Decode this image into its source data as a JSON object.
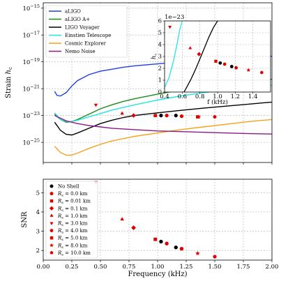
{
  "chart_data": [
    {
      "type": "line",
      "xlabel": "",
      "ylabel": "Strain $h_c$",
      "ylabel_main": "Strain ",
      "ylabel_sub": "c",
      "xlim": [
        0.0,
        2.0
      ],
      "ylim_log10": [
        -26.5,
        -14.6
      ],
      "yscale": "log",
      "grid": true,
      "legend_loc": "upper-left",
      "yticks": [
        {
          "exp": -15,
          "label": "10",
          "sup": "−15"
        },
        {
          "exp": -17,
          "label": "10",
          "sup": "−17"
        },
        {
          "exp": -19,
          "label": "10",
          "sup": "−19"
        },
        {
          "exp": -21,
          "label": "10",
          "sup": "−21"
        },
        {
          "exp": -23,
          "label": "10",
          "sup": "−23"
        },
        {
          "exp": -25,
          "label": "10",
          "sup": "−25"
        }
      ],
      "series": [
        {
          "name": "aLIGO",
          "color": "#1f3fe0",
          "kind": "curve",
          "x": [
            0.1,
            0.12,
            0.15,
            0.2,
            0.25,
            0.3,
            0.4,
            0.5,
            0.6,
            0.7,
            0.8,
            1.0,
            1.2,
            1.4,
            1.6,
            1.8,
            2.0
          ],
          "log10y": [
            -21.2,
            -21.5,
            -21.55,
            -21.3,
            -20.8,
            -20.4,
            -19.95,
            -19.7,
            -19.55,
            -19.4,
            -19.3,
            -19.15,
            -19.0,
            -18.88,
            -18.78,
            -18.68,
            -18.58
          ]
        },
        {
          "name": "aLIGO A+",
          "color": "#1a8a1a",
          "kind": "curve",
          "x": [
            0.1,
            0.15,
            0.2,
            0.25,
            0.3,
            0.4,
            0.5,
            0.6,
            0.7,
            0.8,
            1.0,
            1.2,
            1.4,
            1.6,
            1.8,
            2.0
          ],
          "log10y": [
            -22.9,
            -23.3,
            -23.5,
            -23.45,
            -23.3,
            -22.9,
            -22.5,
            -22.2,
            -21.95,
            -21.75,
            -21.4,
            -21.1,
            -20.85,
            -20.65,
            -20.45,
            -20.3
          ]
        },
        {
          "name": "LIGO Voyager",
          "color": "#000000",
          "kind": "curve",
          "x": [
            0.1,
            0.15,
            0.2,
            0.25,
            0.3,
            0.4,
            0.5,
            0.6,
            0.7,
            0.8,
            0.9,
            1.0,
            1.2,
            1.4,
            1.6,
            1.8,
            2.0
          ],
          "log10y": [
            -23.5,
            -24.1,
            -24.4,
            -24.45,
            -24.3,
            -23.95,
            -23.6,
            -23.35,
            -23.15,
            -23.0,
            -22.9,
            -22.8,
            -22.62,
            -22.45,
            -22.3,
            -22.15,
            -22.0
          ]
        },
        {
          "name": "Einstien Telescope",
          "color": "#22e5e5",
          "kind": "curve",
          "x": [
            0.1,
            0.15,
            0.2,
            0.25,
            0.3,
            0.4,
            0.5,
            0.6,
            0.7,
            0.8,
            1.0,
            1.2,
            1.4,
            1.6,
            1.8,
            2.0
          ],
          "log10y": [
            -22.8,
            -23.3,
            -23.45,
            -23.45,
            -23.35,
            -23.1,
            -22.85,
            -22.6,
            -22.4,
            -22.2,
            -21.85,
            -21.55,
            -21.3,
            -21.1,
            -20.9,
            -20.75
          ]
        },
        {
          "name": "Cosmic Explorer",
          "color": "#f5a21b",
          "kind": "curve",
          "x": [
            0.1,
            0.15,
            0.2,
            0.25,
            0.3,
            0.4,
            0.5,
            0.6,
            0.8,
            1.0,
            1.2,
            1.4,
            1.6,
            1.8,
            2.0
          ],
          "log10y": [
            -25.3,
            -25.75,
            -25.95,
            -25.95,
            -25.8,
            -25.45,
            -25.15,
            -24.9,
            -24.55,
            -24.3,
            -24.05,
            -23.85,
            -23.65,
            -23.45,
            -23.3
          ]
        },
        {
          "name": "Nemo Noise",
          "color": "#8a1a8a",
          "kind": "curve",
          "x": [
            0.1,
            0.2,
            0.3,
            0.4,
            0.5,
            0.6,
            0.8,
            1.0,
            1.2,
            1.4,
            1.6,
            1.8,
            2.0
          ],
          "log10y": [
            -23.0,
            -23.4,
            -23.6,
            -23.75,
            -23.85,
            -23.95,
            -24.05,
            -24.15,
            -24.2,
            -24.25,
            -24.3,
            -24.35,
            -24.38
          ]
        }
      ],
      "points": [
        {
          "marker": "circle",
          "color": "#000000",
          "x": 1.03,
          "log10y": -23.0
        },
        {
          "marker": "circle",
          "color": "#e00000",
          "x": 1.08,
          "log10y": -23.0
        },
        {
          "marker": "square",
          "color": "#e00000",
          "x": 0.98,
          "log10y": -23.0
        },
        {
          "marker": "diamond",
          "color": "#e00000",
          "x": 0.79,
          "log10y": -23.0
        },
        {
          "marker": "triangle-up",
          "color": "#e00000",
          "x": 0.69,
          "log10y": -22.85
        },
        {
          "marker": "triangle-down",
          "color": "#e00000",
          "x": 0.46,
          "log10y": -22.2
        },
        {
          "marker": "square",
          "color": "#e00000",
          "x": 1.35,
          "log10y": -23.1
        },
        {
          "marker": "star",
          "color": "#e00000",
          "x": 1.36,
          "log10y": -23.1
        },
        {
          "marker": "hexagon",
          "color": "#e00000",
          "x": 1.5,
          "log10y": -23.1
        },
        {
          "marker": "circle",
          "color": "#000000",
          "x": 1.16,
          "log10y": -23.0
        },
        {
          "marker": "circle",
          "color": "#e00000",
          "x": 1.21,
          "log10y": -23.05
        }
      ]
    },
    {
      "type": "line",
      "inset": true,
      "ylabel": "$h_c$",
      "ylabel_main": "h",
      "ylabel_sub": "c",
      "xlabel": "f (kHz)",
      "offset_text": "1e−23",
      "xlim": [
        0.4,
        1.6
      ],
      "ylim": [
        0,
        6
      ],
      "grid": true,
      "xticks": [
        "0.4",
        "0.6",
        "0.8",
        "1.0",
        "1.2",
        "1.4"
      ],
      "yticks": [
        "0",
        "1",
        "2",
        "3",
        "4",
        "5",
        "6"
      ],
      "series": [
        {
          "name": "Einstien Telescope",
          "color": "#22e5e5",
          "x": [
            0.4,
            0.45,
            0.5,
            0.54,
            0.57,
            0.6
          ],
          "y": [
            0.4,
            1.2,
            2.6,
            4.0,
            5.2,
            6.0
          ]
        },
        {
          "name": "LIGO Voyager",
          "color": "#000000",
          "x": [
            0.62,
            0.65,
            0.7,
            0.75,
            0.8,
            0.85,
            0.9,
            0.95,
            1.0
          ],
          "y": [
            0.0,
            0.4,
            1.1,
            1.9,
            2.8,
            3.7,
            4.6,
            5.4,
            6.0
          ]
        }
      ],
      "points": [
        {
          "marker": "triangle-down",
          "color": "#e00000",
          "x": 0.46,
          "y": 5.5
        },
        {
          "marker": "triangle-up",
          "color": "#e00000",
          "x": 0.69,
          "y": 3.7
        },
        {
          "marker": "diamond",
          "color": "#e00000",
          "x": 0.79,
          "y": 3.2
        },
        {
          "marker": "square",
          "color": "#e00000",
          "x": 0.98,
          "y": 2.6
        },
        {
          "marker": "circle",
          "color": "#000000",
          "x": 1.03,
          "y": 2.45
        },
        {
          "marker": "circle",
          "color": "#e00000",
          "x": 1.08,
          "y": 2.35
        },
        {
          "marker": "circle",
          "color": "#000000",
          "x": 1.16,
          "y": 2.15
        },
        {
          "marker": "circle",
          "color": "#e00000",
          "x": 1.21,
          "y": 2.05
        },
        {
          "marker": "star",
          "color": "#e00000",
          "x": 1.35,
          "y": 1.85
        },
        {
          "marker": "hexagon",
          "color": "#e00000",
          "x": 1.5,
          "y": 1.65
        }
      ]
    },
    {
      "type": "scatter",
      "xlabel": "Frequency (kHz)",
      "ylabel": "SNR",
      "xlim": [
        0.0,
        2.0
      ],
      "ylim": [
        1.5,
        5.7
      ],
      "grid": true,
      "legend_loc": "upper-left",
      "xticks": [
        "0.00",
        "0.25",
        "0.50",
        "0.75",
        "1.00",
        "1.25",
        "1.50",
        "1.75",
        "2.00"
      ],
      "yticks": [
        "2",
        "3",
        "4",
        "5"
      ],
      "legend": [
        {
          "label": "No Shell",
          "marker": "circle",
          "color": "#000000"
        },
        {
          "label": "0.0 km",
          "marker": "circle",
          "color": "#e00000"
        },
        {
          "label": "0.01 km",
          "marker": "square",
          "color": "#e00000"
        },
        {
          "label": "0.1 km",
          "marker": "diamond",
          "color": "#e00000"
        },
        {
          "label": "1.0 km",
          "marker": "triangle-up",
          "color": "#e00000"
        },
        {
          "label": "3.0 km",
          "marker": "triangle-down",
          "color": "#e00000"
        },
        {
          "label": "4.0 km",
          "marker": "hexagon",
          "color": "#e00000"
        },
        {
          "label": "5.0 km",
          "marker": "square",
          "color": "#e00000"
        },
        {
          "label": "8.0 km",
          "marker": "star",
          "color": "#e00000"
        },
        {
          "label": "10.0 km",
          "marker": "pentagon",
          "color": "#e00000"
        }
      ],
      "legend_prefix": "R",
      "legend_prefix_sub": "s",
      "points": [
        {
          "marker": "triangle-down",
          "color": "#e00000",
          "x": 0.46,
          "y": 5.55
        },
        {
          "marker": "triangle-up",
          "color": "#e00000",
          "x": 0.69,
          "y": 3.62
        },
        {
          "marker": "diamond",
          "color": "#e00000",
          "x": 0.79,
          "y": 3.18
        },
        {
          "marker": "square",
          "color": "#e00000",
          "x": 0.98,
          "y": 2.58
        },
        {
          "marker": "circle",
          "color": "#000000",
          "x": 1.03,
          "y": 2.46
        },
        {
          "marker": "circle",
          "color": "#e00000",
          "x": 1.08,
          "y": 2.36
        },
        {
          "marker": "circle",
          "color": "#000000",
          "x": 1.16,
          "y": 2.16
        },
        {
          "marker": "circle",
          "color": "#e00000",
          "x": 1.21,
          "y": 2.09
        },
        {
          "marker": "star",
          "color": "#e00000",
          "x": 1.35,
          "y": 1.85
        },
        {
          "marker": "hexagon",
          "color": "#e00000",
          "x": 1.5,
          "y": 1.68
        }
      ]
    }
  ]
}
